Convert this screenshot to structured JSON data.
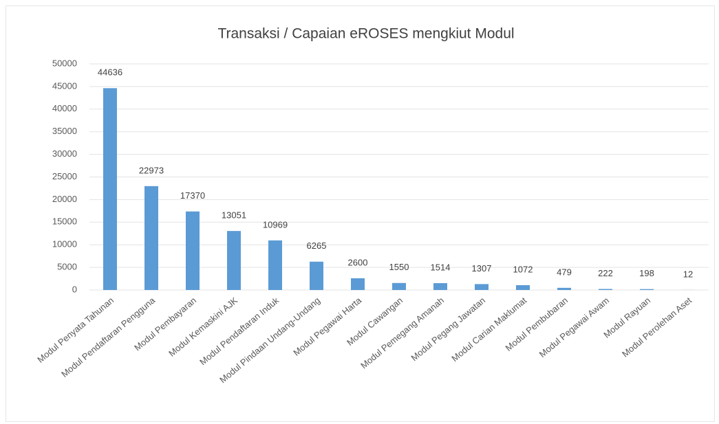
{
  "chart_data": {
    "type": "bar",
    "title": "Transaksi / Capaian eROSES mengkiut Modul",
    "categories": [
      "Modul Penyata Tahunan",
      "Modul Pendaftaran Pengguna",
      "Modul Pembayaran",
      "Modul Kemaskini AJK",
      "Modul Pendaftaran Induk",
      "Modul Pindaan Undang-Undang",
      "Modul Pegawai Harta",
      "Modul Cawangan",
      "Modul Pemegang Amanah",
      "Modul Pegang Jawatan",
      "Modul Carian Maklumat",
      "Modul Pembubaran",
      "Modul Pegawai Awam",
      "Modul Rayuan",
      "Modul Perolehan Aset"
    ],
    "values": [
      44636,
      22973,
      17370,
      13051,
      10969,
      6265,
      2600,
      1550,
      1514,
      1307,
      1072,
      479,
      222,
      198,
      12
    ],
    "color": "#5b9bd5",
    "ylim": [
      0,
      50000
    ],
    "yticks": [
      0,
      5000,
      10000,
      15000,
      20000,
      25000,
      30000,
      35000,
      40000,
      45000,
      50000
    ],
    "grid": true
  }
}
